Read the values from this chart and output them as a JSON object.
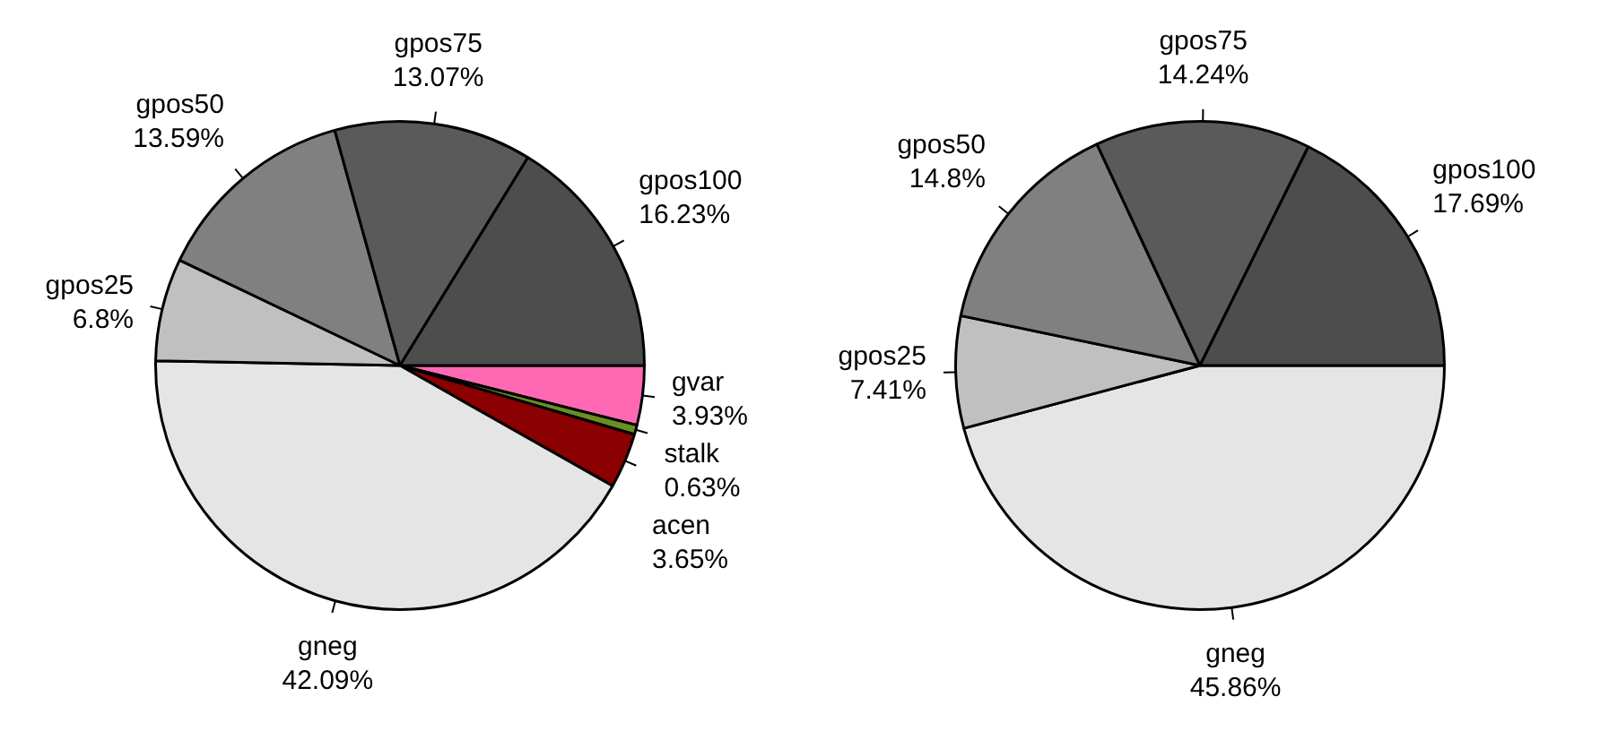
{
  "chart_data": [
    {
      "type": "pie",
      "categories": [
        "gpos100",
        "gpos75",
        "gpos50",
        "gpos25",
        "gneg",
        "acen",
        "stalk",
        "gvar"
      ],
      "values": [
        16.23,
        13.07,
        13.59,
        6.8,
        42.09,
        3.65,
        0.63,
        3.93
      ],
      "value_labels": [
        "16.23%",
        "13.07%",
        "13.59%",
        "6.8%",
        "42.09%",
        "3.65%",
        "0.63%",
        "3.93%"
      ],
      "colors": [
        "#4d4d4d",
        "#5a5a5a",
        "#808080",
        "#c0c0c0",
        "#e5e5e5",
        "#8b0000",
        "#6b8e23",
        "#ff69b4"
      ],
      "legend": false
    },
    {
      "type": "pie",
      "categories": [
        "gpos100",
        "gpos75",
        "gpos50",
        "gpos25",
        "gneg"
      ],
      "values": [
        17.69,
        14.24,
        14.8,
        7.41,
        45.86
      ],
      "value_labels": [
        "17.69%",
        "14.24%",
        "14.8%",
        "7.41%",
        "45.86%"
      ],
      "colors": [
        "#4d4d4d",
        "#5a5a5a",
        "#808080",
        "#c0c0c0",
        "#e5e5e5"
      ],
      "legend": false
    }
  ]
}
